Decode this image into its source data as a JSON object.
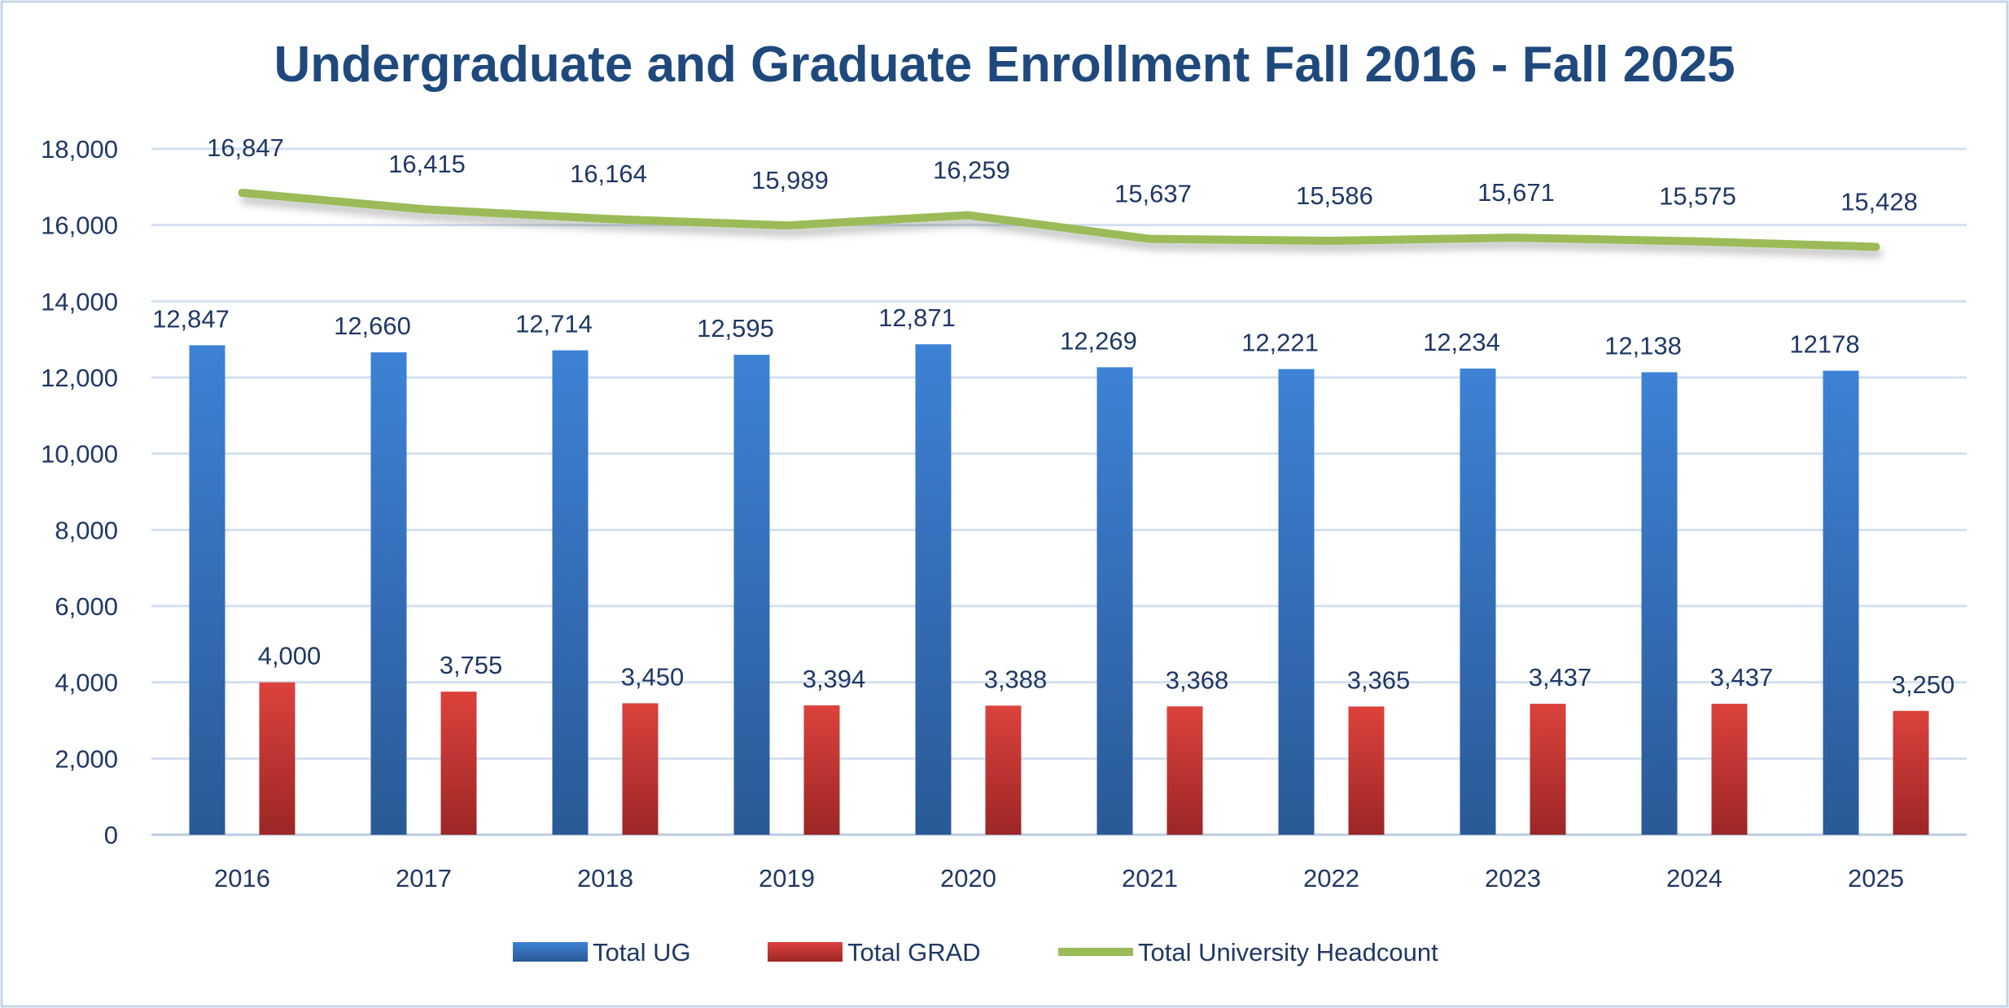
{
  "chart_data": {
    "type": "bar",
    "title": "Undergraduate and Graduate Enrollment Fall 2016 - Fall 2025",
    "xlabel": "",
    "ylabel": "",
    "categories": [
      "2016",
      "2017",
      "2018",
      "2019",
      "2020",
      "2021",
      "2022",
      "2023",
      "2024",
      "2025"
    ],
    "ylim": [
      0,
      18000
    ],
    "yticks": [
      "0",
      "2,000",
      "4,000",
      "6,000",
      "8,000",
      "10,000",
      "12,000",
      "14,000",
      "16,000",
      "18,000"
    ],
    "grid": true,
    "legend_position": "bottom",
    "series": [
      {
        "name": "Total UG",
        "type": "bar",
        "color": "#3a7bd0",
        "values": [
          12847,
          12660,
          12714,
          12595,
          12871,
          12269,
          12221,
          12234,
          12138,
          12178
        ],
        "labels": [
          "12,847",
          "12,660",
          "12,714",
          "12,595",
          "12,871",
          "12,269",
          "12,221",
          "12,234",
          "12,138",
          "12178"
        ]
      },
      {
        "name": "Total GRAD",
        "type": "bar",
        "color": "#d23b36",
        "values": [
          4000,
          3755,
          3450,
          3394,
          3388,
          3368,
          3365,
          3437,
          3437,
          3250
        ],
        "labels": [
          "4,000",
          "3,755",
          "3,450",
          "3,394",
          "3,388",
          "3,368",
          "3,365",
          "3,437",
          "3,437",
          "3,250"
        ]
      },
      {
        "name": "Total University Headcount",
        "type": "line",
        "color": "#9bbb59",
        "values": [
          16847,
          16415,
          16164,
          15989,
          16259,
          15637,
          15586,
          15671,
          15575,
          15428
        ],
        "labels": [
          "16,847",
          "16,415",
          "16,164",
          "15,989",
          "16,259",
          "15,637",
          "15,586",
          "15,671",
          "15,575",
          "15,428"
        ]
      }
    ]
  }
}
